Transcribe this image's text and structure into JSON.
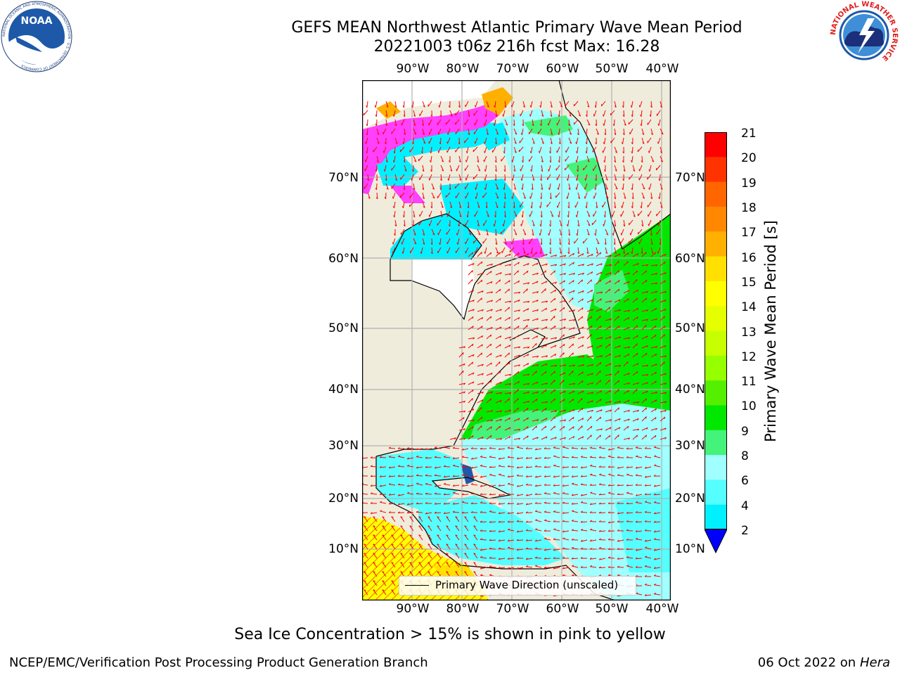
{
  "title": {
    "line1": "GEFS MEAN Northwest Atlantic Primary Wave Mean Period",
    "line2": "20221003 t06z 216h fcst   Max: 16.28"
  },
  "logos": {
    "noaa": {
      "text": "NOAA",
      "ring_text": "NATIONAL OCEANIC AND ATMOSPHERIC ADMINISTRATION · U.S. DEPARTMENT OF COMMERCE"
    },
    "nws": {
      "ring_text": "NATIONAL WEATHER SERVICE"
    }
  },
  "map": {
    "lon_labels": [
      "90°W",
      "80°W",
      "70°W",
      "60°W",
      "50°W",
      "40°W"
    ],
    "lat_labels": [
      "70°N",
      "60°N",
      "50°N",
      "40°N",
      "30°N",
      "20°N",
      "10°N"
    ],
    "legend": "Primary Wave Direction (unscaled)",
    "colors": {
      "land": "#efecdc",
      "arrow": "#ff0000",
      "grid": "#b0b0b0"
    }
  },
  "colorbar": {
    "label": "Primary Wave Mean Period [s]",
    "ticks": [
      "21",
      "20",
      "19",
      "18",
      "17",
      "16",
      "15",
      "14",
      "13",
      "12",
      "11",
      "10",
      "9",
      "8",
      "6",
      "4",
      "2"
    ],
    "colors": [
      "#ff0000",
      "#ff3300",
      "#ff6600",
      "#ff8800",
      "#ffb000",
      "#ffe000",
      "#ffff00",
      "#e6ff00",
      "#c8ff00",
      "#96ff00",
      "#54f000",
      "#00e800",
      "#44f37a",
      "#a0ffff",
      "#55ffff",
      "#00f0ff",
      "#00dfff",
      "#0070ff"
    ],
    "extend_color": "#0000ff"
  },
  "footer": {
    "note": "Sea Ice Concentration > 15% is shown in pink to yellow",
    "credit": "NCEP/EMC/Verification Post Processing Product Generation Branch",
    "date": "06 Oct 2022 on",
    "machine": "Hera"
  }
}
